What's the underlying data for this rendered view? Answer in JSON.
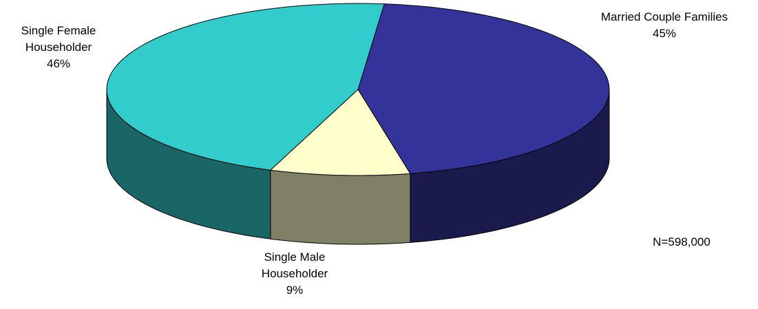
{
  "chart_data": {
    "type": "pie3d",
    "categories": [
      "Married Couple Families",
      "Single Male Householder",
      "Single Female Householder"
    ],
    "values": [
      45,
      9,
      46
    ],
    "value_labels": [
      "45%",
      "9%",
      "46%"
    ],
    "colors": [
      "#333399",
      "#ffffcc",
      "#33cccc"
    ],
    "annotation": "N=598,000"
  }
}
